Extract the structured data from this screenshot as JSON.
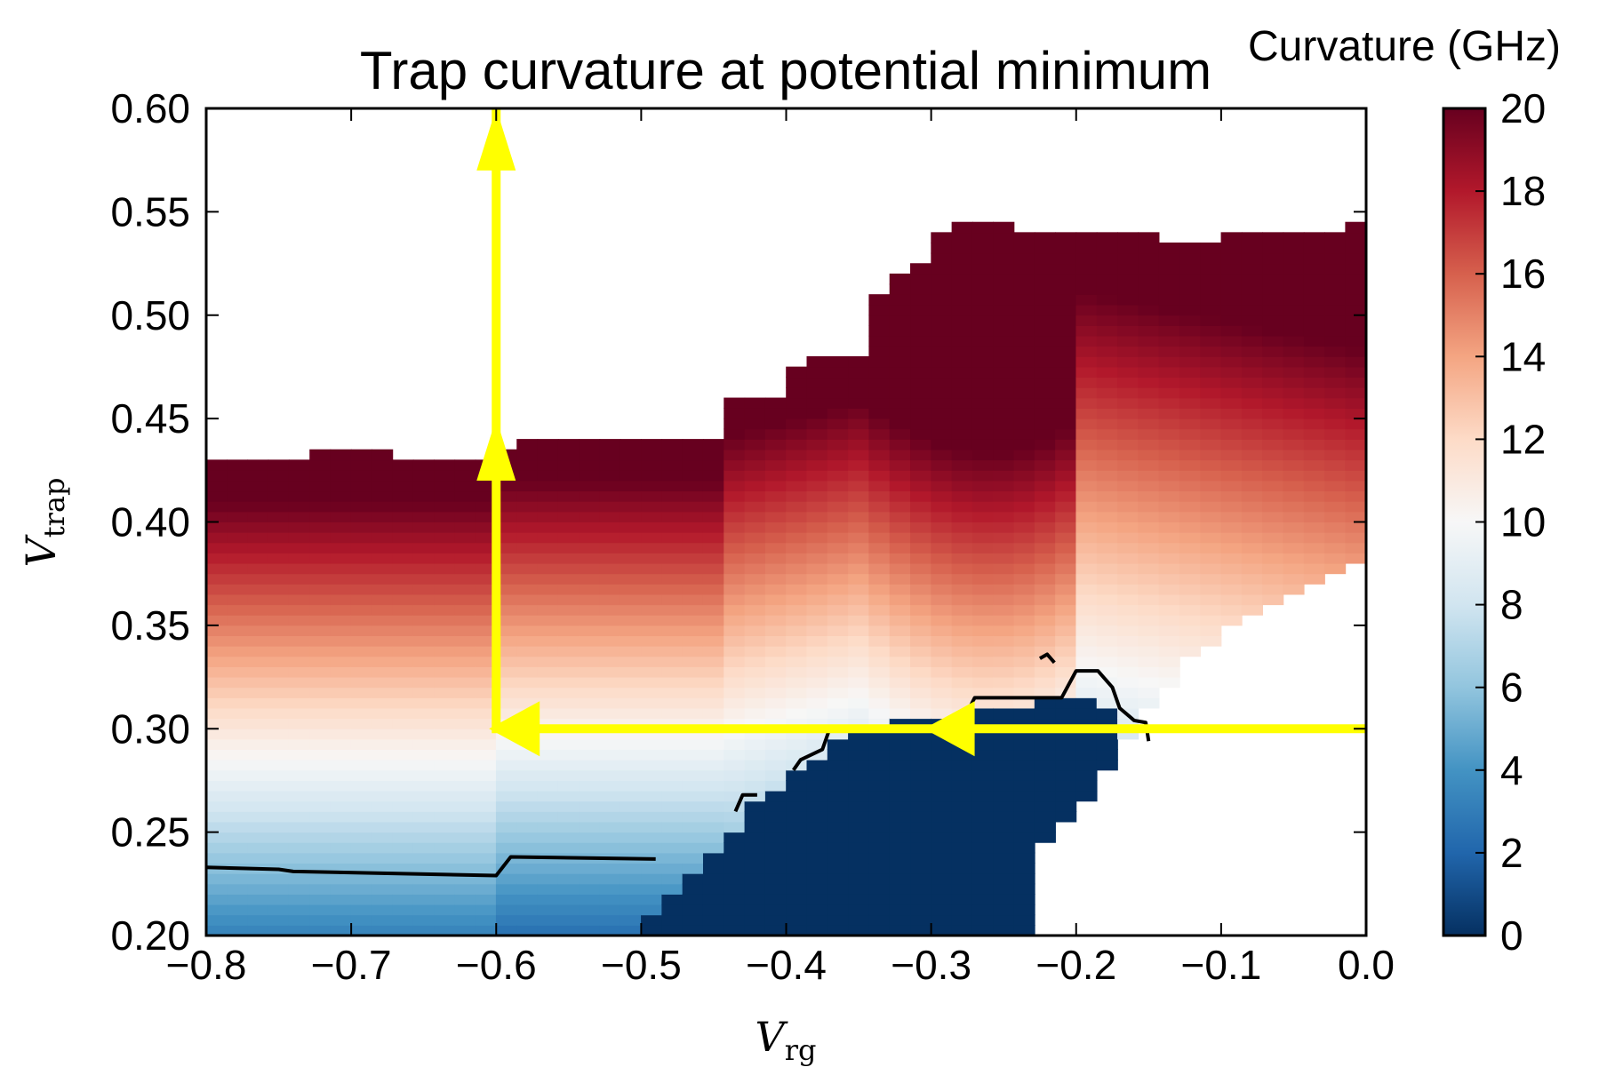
{
  "chart_data": {
    "type": "heatmap",
    "title": "Trap curvature at potential minimum",
    "xlabel": {
      "symbol": "V",
      "subscript": "rg"
    },
    "ylabel": {
      "symbol": "V",
      "subscript": "trap"
    },
    "xlim": [
      -0.8,
      0.0
    ],
    "ylim": [
      0.2,
      0.6
    ],
    "xticks": [
      -0.8,
      -0.7,
      -0.6,
      -0.5,
      -0.4,
      -0.3,
      -0.2,
      -0.1,
      0.0
    ],
    "xtick_labels": [
      "−0.8",
      "−0.7",
      "−0.6",
      "−0.5",
      "−0.4",
      "−0.3",
      "−0.2",
      "−0.1",
      "0.0"
    ],
    "yticks": [
      0.2,
      0.25,
      0.3,
      0.35,
      0.4,
      0.45,
      0.5,
      0.55,
      0.6
    ],
    "ytick_labels": [
      "0.20",
      "0.25",
      "0.30",
      "0.35",
      "0.40",
      "0.45",
      "0.50",
      "0.55",
      "0.60"
    ],
    "colorbar": {
      "label": "Curvature (GHz)",
      "range": [
        0,
        20
      ],
      "ticks": [
        0,
        2,
        4,
        6,
        8,
        10,
        12,
        14,
        16,
        18,
        20
      ],
      "tick_labels": [
        "0",
        "2",
        "4",
        "6",
        "8",
        "10",
        "12",
        "14",
        "16",
        "18",
        "20"
      ],
      "colormap": "RdBu_r",
      "colors": [
        "#053061",
        "#2166ac",
        "#4393c3",
        "#92c5de",
        "#d1e5f0",
        "#f7f7f7",
        "#fddbc7",
        "#f4a582",
        "#d6604d",
        "#b2182b",
        "#67001f"
      ]
    },
    "heatmap_model": {
      "description_x_boundaries": "upper edge of data region per column (Vtrap), lower edge and saturated region",
      "upper_edge": [
        [
          -0.8,
          0.43
        ],
        [
          -0.75,
          0.43
        ],
        [
          -0.7,
          0.435
        ],
        [
          -0.65,
          0.43
        ],
        [
          -0.6,
          0.43
        ],
        [
          -0.59,
          0.44
        ],
        [
          -0.45,
          0.44
        ],
        [
          -0.44,
          0.46
        ],
        [
          -0.4,
          0.46
        ],
        [
          -0.39,
          0.48
        ],
        [
          -0.35,
          0.48
        ],
        [
          -0.34,
          0.51
        ],
        [
          -0.32,
          0.52
        ],
        [
          -0.3,
          0.53
        ],
        [
          -0.29,
          0.545
        ],
        [
          -0.25,
          0.545
        ],
        [
          -0.24,
          0.54
        ],
        [
          -0.15,
          0.54
        ],
        [
          -0.14,
          0.535
        ],
        [
          -0.11,
          0.535
        ],
        [
          -0.1,
          0.538
        ],
        [
          -0.06,
          0.538
        ],
        [
          -0.05,
          0.542
        ],
        [
          -0.01,
          0.542
        ],
        [
          0.0,
          0.545
        ]
      ],
      "right_lower_edge": [
        [
          -0.23,
          0.24
        ],
        [
          -0.2,
          0.26
        ],
        [
          -0.17,
          0.29
        ],
        [
          -0.15,
          0.31
        ],
        [
          -0.12,
          0.335
        ],
        [
          -0.08,
          0.355
        ],
        [
          -0.04,
          0.37
        ],
        [
          0.0,
          0.385
        ]
      ],
      "zero_region_edge": [
        [
          -0.5,
          0.205
        ],
        [
          -0.45,
          0.24
        ],
        [
          -0.42,
          0.265
        ],
        [
          -0.38,
          0.285
        ],
        [
          -0.35,
          0.3
        ],
        [
          -0.3,
          0.305
        ],
        [
          -0.25,
          0.31
        ],
        [
          -0.2,
          0.315
        ],
        [
          -0.17,
          0.305
        ]
      ]
    },
    "contour_line": {
      "level": 2,
      "color": "#000000",
      "segments": [
        [
          [
            -0.8,
            0.233
          ],
          [
            -0.75,
            0.232
          ],
          [
            -0.74,
            0.231
          ],
          [
            -0.6,
            0.229
          ],
          [
            -0.59,
            0.238
          ],
          [
            -0.49,
            0.237
          ]
        ],
        [
          [
            -0.435,
            0.26
          ],
          [
            -0.43,
            0.268
          ],
          [
            -0.42,
            0.268
          ]
        ],
        [
          [
            -0.395,
            0.28
          ],
          [
            -0.39,
            0.285
          ],
          [
            -0.375,
            0.29
          ],
          [
            -0.37,
            0.3
          ],
          [
            -0.36,
            0.301
          ],
          [
            -0.28,
            0.301
          ],
          [
            -0.27,
            0.315
          ],
          [
            -0.21,
            0.315
          ],
          [
            -0.2,
            0.328
          ],
          [
            -0.185,
            0.328
          ],
          [
            -0.175,
            0.32
          ],
          [
            -0.17,
            0.31
          ],
          [
            -0.16,
            0.304
          ],
          [
            -0.152,
            0.303
          ],
          [
            -0.15,
            0.294
          ]
        ],
        [
          [
            -0.225,
            0.334
          ],
          [
            -0.22,
            0.336
          ],
          [
            -0.215,
            0.332
          ]
        ]
      ]
    },
    "annotations": {
      "arrow_color": "#ffff00",
      "path": [
        [
          0.0,
          0.3
        ],
        [
          -0.6,
          0.3
        ],
        [
          -0.6,
          0.6
        ]
      ],
      "arrowheads": [
        {
          "at": [
            -0.27,
            0.3
          ],
          "direction": "left"
        },
        {
          "at": [
            -0.57,
            0.3
          ],
          "direction": "left"
        },
        {
          "at": [
            -0.6,
            0.42
          ],
          "direction": "up"
        },
        {
          "at": [
            -0.6,
            0.57
          ],
          "direction": "up"
        }
      ]
    }
  }
}
